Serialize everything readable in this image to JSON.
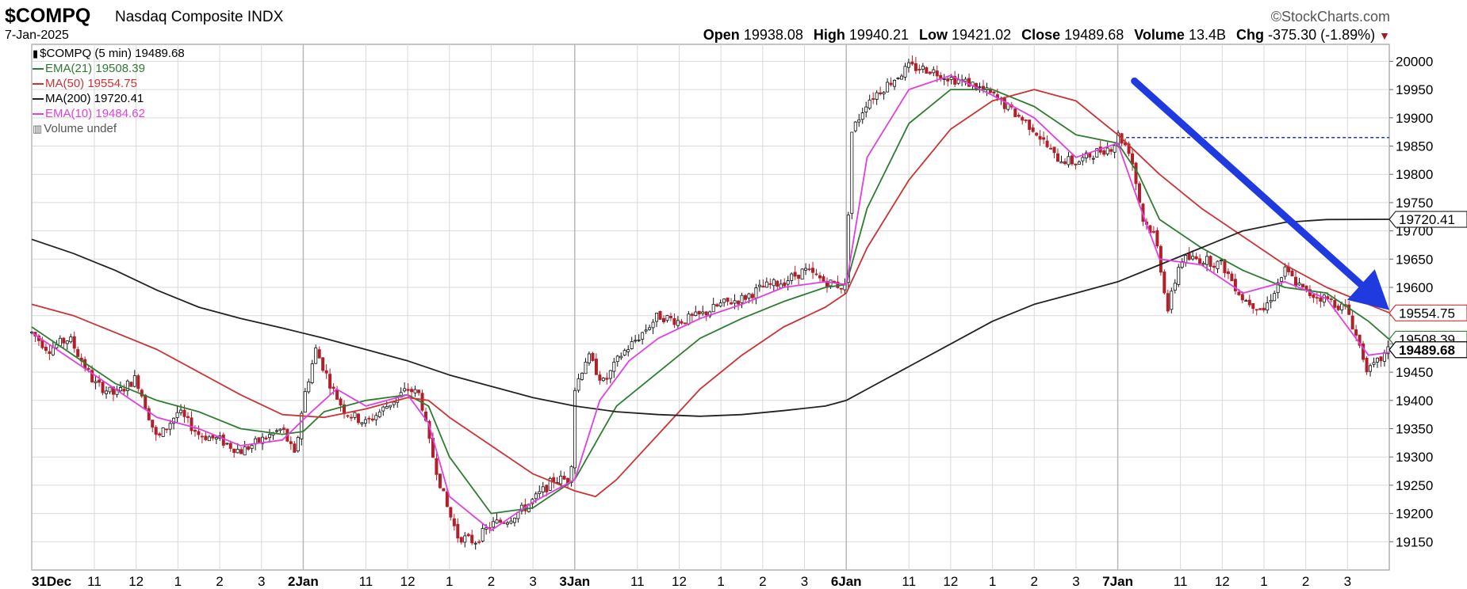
{
  "header": {
    "symbol": "$COMPQ",
    "name": "Nasdaq Composite INDX",
    "date": "7-Jan-2025",
    "watermark": "©StockCharts.com",
    "open_label": "Open",
    "open": "19938.08",
    "high_label": "High",
    "high": "19940.21",
    "low_label": "Low",
    "low": "19421.02",
    "close_label": "Close",
    "close": "19489.68",
    "volume_label": "Volume",
    "volume": "13.4B",
    "chg_label": "Chg",
    "chg": "-375.30 (-1.89%)",
    "chg_marker": "▼"
  },
  "legend": {
    "price": "$COMPQ (5 min) 19489.68",
    "ema21": "EMA(21) 19508.39",
    "ma50": "MA(50) 19554.75",
    "ma200": "MA(200) 19720.41",
    "ema10": "EMA(10) 19484.62",
    "volume": "Volume undef"
  },
  "colors": {
    "candle_up": "#111111",
    "candle_down": "#b0202a",
    "ema21": "#2e7d32",
    "ma50": "#cc3333",
    "ma200": "#222222",
    "ema10": "#e040e0",
    "arrow": "#1f3be0",
    "ref_line": "#2233cc",
    "grid": "#d9d9d9"
  },
  "chart_data": {
    "type": "line",
    "interval": "5 min",
    "ylim": [
      19100,
      20030
    ],
    "y_ticks": [
      19150,
      19200,
      19250,
      19300,
      19350,
      19400,
      19450,
      19500,
      19550,
      19600,
      19650,
      19700,
      19750,
      19800,
      19850,
      19900,
      19950,
      20000
    ],
    "sessions": [
      "31Dec",
      "2Jan",
      "3Jan",
      "6Jan",
      "7Jan"
    ],
    "x_ticks": [
      {
        "t": 0.0,
        "label": "31Dec",
        "bold": true,
        "major": true
      },
      {
        "t": 1.5,
        "label": "11"
      },
      {
        "t": 2.5,
        "label": "12"
      },
      {
        "t": 3.5,
        "label": "1"
      },
      {
        "t": 4.5,
        "label": "2"
      },
      {
        "t": 5.5,
        "label": "3"
      },
      {
        "t": 6.5,
        "label": "2Jan",
        "bold": true,
        "major": true
      },
      {
        "t": 8.0,
        "label": "11"
      },
      {
        "t": 9.0,
        "label": "12"
      },
      {
        "t": 10.0,
        "label": "1"
      },
      {
        "t": 11.0,
        "label": "2"
      },
      {
        "t": 12.0,
        "label": "3"
      },
      {
        "t": 13.0,
        "label": "3Jan",
        "bold": true,
        "major": true
      },
      {
        "t": 14.5,
        "label": "11"
      },
      {
        "t": 15.5,
        "label": "12"
      },
      {
        "t": 16.5,
        "label": "1"
      },
      {
        "t": 17.5,
        "label": "2"
      },
      {
        "t": 18.5,
        "label": "3"
      },
      {
        "t": 19.5,
        "label": "6Jan",
        "bold": true,
        "major": true
      },
      {
        "t": 21.0,
        "label": "11"
      },
      {
        "t": 22.0,
        "label": "12"
      },
      {
        "t": 23.0,
        "label": "1"
      },
      {
        "t": 24.0,
        "label": "2"
      },
      {
        "t": 25.0,
        "label": "3"
      },
      {
        "t": 26.0,
        "label": "7Jan",
        "bold": true,
        "major": true
      },
      {
        "t": 27.5,
        "label": "11"
      },
      {
        "t": 28.5,
        "label": "12"
      },
      {
        "t": 29.5,
        "label": "1"
      },
      {
        "t": 30.5,
        "label": "2"
      },
      {
        "t": 31.5,
        "label": "3"
      }
    ],
    "x_end": 32.5,
    "price_path": [
      [
        0.0,
        19520
      ],
      [
        0.4,
        19490
      ],
      [
        0.9,
        19510
      ],
      [
        1.5,
        19430
      ],
      [
        2.0,
        19410
      ],
      [
        2.5,
        19440
      ],
      [
        3.0,
        19330
      ],
      [
        3.5,
        19380
      ],
      [
        4.0,
        19340
      ],
      [
        4.5,
        19330
      ],
      [
        5.0,
        19310
      ],
      [
        5.5,
        19330
      ],
      [
        6.0,
        19350
      ],
      [
        6.3,
        19300
      ],
      [
        6.5,
        19400
      ],
      [
        6.8,
        19490
      ],
      [
        7.2,
        19420
      ],
      [
        7.5,
        19380
      ],
      [
        8.0,
        19360
      ],
      [
        8.5,
        19390
      ],
      [
        9.0,
        19420
      ],
      [
        9.3,
        19410
      ],
      [
        9.5,
        19330
      ],
      [
        9.9,
        19220
      ],
      [
        10.2,
        19160
      ],
      [
        10.6,
        19150
      ],
      [
        11.0,
        19180
      ],
      [
        11.4,
        19190
      ],
      [
        11.8,
        19210
      ],
      [
        12.1,
        19230
      ],
      [
        12.5,
        19260
      ],
      [
        12.9,
        19260
      ],
      [
        13.0,
        19420
      ],
      [
        13.3,
        19480
      ],
      [
        13.7,
        19430
      ],
      [
        14.1,
        19480
      ],
      [
        14.5,
        19510
      ],
      [
        15.0,
        19550
      ],
      [
        15.5,
        19540
      ],
      [
        16.0,
        19550
      ],
      [
        16.5,
        19570
      ],
      [
        17.0,
        19580
      ],
      [
        17.5,
        19600
      ],
      [
        18.0,
        19610
      ],
      [
        18.5,
        19630
      ],
      [
        19.0,
        19610
      ],
      [
        19.5,
        19600
      ],
      [
        19.6,
        19870
      ],
      [
        20.0,
        19930
      ],
      [
        20.5,
        19960
      ],
      [
        21.0,
        19990
      ],
      [
        21.5,
        19985
      ],
      [
        22.0,
        19970
      ],
      [
        22.5,
        19960
      ],
      [
        23.0,
        19940
      ],
      [
        23.5,
        19910
      ],
      [
        24.0,
        19880
      ],
      [
        24.5,
        19830
      ],
      [
        25.0,
        19820
      ],
      [
        25.5,
        19840
      ],
      [
        25.9,
        19850
      ],
      [
        26.0,
        19870
      ],
      [
        26.3,
        19840
      ],
      [
        26.6,
        19720
      ],
      [
        26.9,
        19690
      ],
      [
        27.2,
        19560
      ],
      [
        27.5,
        19650
      ],
      [
        28.0,
        19650
      ],
      [
        28.5,
        19640
      ],
      [
        29.0,
        19580
      ],
      [
        29.5,
        19560
      ],
      [
        30.0,
        19630
      ],
      [
        30.5,
        19590
      ],
      [
        31.0,
        19580
      ],
      [
        31.5,
        19560
      ],
      [
        32.0,
        19450
      ],
      [
        32.5,
        19489.68
      ]
    ],
    "series": [
      {
        "name": "EMA(21)",
        "key": "ema21",
        "points": [
          [
            0.0,
            19530
          ],
          [
            1.0,
            19480
          ],
          [
            2.0,
            19430
          ],
          [
            3.0,
            19400
          ],
          [
            4.0,
            19380
          ],
          [
            5.0,
            19350
          ],
          [
            6.0,
            19340
          ],
          [
            6.5,
            19345
          ],
          [
            7.0,
            19380
          ],
          [
            8.0,
            19400
          ],
          [
            9.0,
            19410
          ],
          [
            9.5,
            19390
          ],
          [
            10.0,
            19300
          ],
          [
            11.0,
            19200
          ],
          [
            12.0,
            19210
          ],
          [
            13.0,
            19260
          ],
          [
            14.0,
            19390
          ],
          [
            15.0,
            19450
          ],
          [
            16.0,
            19510
          ],
          [
            17.0,
            19545
          ],
          [
            18.0,
            19575
          ],
          [
            19.0,
            19600
          ],
          [
            19.5,
            19605
          ],
          [
            20.0,
            19740
          ],
          [
            21.0,
            19890
          ],
          [
            22.0,
            19950
          ],
          [
            23.0,
            19950
          ],
          [
            24.0,
            19920
          ],
          [
            25.0,
            19870
          ],
          [
            26.0,
            19855
          ],
          [
            26.5,
            19800
          ],
          [
            27.0,
            19720
          ],
          [
            28.0,
            19670
          ],
          [
            29.0,
            19630
          ],
          [
            30.0,
            19600
          ],
          [
            31.0,
            19590
          ],
          [
            32.0,
            19540
          ],
          [
            32.5,
            19508
          ]
        ]
      },
      {
        "name": "MA(50)",
        "key": "ma50",
        "points": [
          [
            0.0,
            19570
          ],
          [
            1.0,
            19550
          ],
          [
            2.0,
            19520
          ],
          [
            3.0,
            19490
          ],
          [
            4.0,
            19450
          ],
          [
            5.0,
            19410
          ],
          [
            6.0,
            19375
          ],
          [
            7.0,
            19370
          ],
          [
            8.0,
            19385
          ],
          [
            9.0,
            19405
          ],
          [
            9.5,
            19400
          ],
          [
            10.0,
            19370
          ],
          [
            11.0,
            19320
          ],
          [
            12.0,
            19270
          ],
          [
            13.0,
            19240
          ],
          [
            13.5,
            19230
          ],
          [
            14.0,
            19260
          ],
          [
            15.0,
            19340
          ],
          [
            16.0,
            19420
          ],
          [
            17.0,
            19480
          ],
          [
            18.0,
            19530
          ],
          [
            19.0,
            19565
          ],
          [
            19.5,
            19590
          ],
          [
            20.0,
            19670
          ],
          [
            21.0,
            19790
          ],
          [
            22.0,
            19880
          ],
          [
            23.0,
            19930
          ],
          [
            24.0,
            19950
          ],
          [
            25.0,
            19930
          ],
          [
            26.0,
            19870
          ],
          [
            27.0,
            19800
          ],
          [
            28.0,
            19740
          ],
          [
            29.0,
            19690
          ],
          [
            30.0,
            19640
          ],
          [
            31.0,
            19600
          ],
          [
            32.0,
            19570
          ],
          [
            32.5,
            19555
          ]
        ]
      },
      {
        "name": "MA(200)",
        "key": "ma200",
        "points": [
          [
            0.0,
            19685
          ],
          [
            1.0,
            19660
          ],
          [
            2.0,
            19630
          ],
          [
            3.0,
            19595
          ],
          [
            4.0,
            19565
          ],
          [
            5.0,
            19545
          ],
          [
            6.0,
            19528
          ],
          [
            7.0,
            19510
          ],
          [
            8.0,
            19490
          ],
          [
            9.0,
            19470
          ],
          [
            10.0,
            19445
          ],
          [
            11.0,
            19425
          ],
          [
            12.0,
            19405
          ],
          [
            13.0,
            19390
          ],
          [
            14.0,
            19380
          ],
          [
            15.0,
            19375
          ],
          [
            16.0,
            19372
          ],
          [
            17.0,
            19375
          ],
          [
            18.0,
            19382
          ],
          [
            19.0,
            19390
          ],
          [
            19.5,
            19400
          ],
          [
            20.0,
            19420
          ],
          [
            21.0,
            19460
          ],
          [
            22.0,
            19500
          ],
          [
            23.0,
            19540
          ],
          [
            24.0,
            19570
          ],
          [
            25.0,
            19590
          ],
          [
            26.0,
            19610
          ],
          [
            27.0,
            19640
          ],
          [
            28.0,
            19670
          ],
          [
            29.0,
            19700
          ],
          [
            30.0,
            19715
          ],
          [
            31.0,
            19720
          ],
          [
            32.5,
            19720.41
          ]
        ]
      },
      {
        "name": "EMA(10)",
        "key": "ema10",
        "points": [
          [
            0.0,
            19520
          ],
          [
            1.0,
            19470
          ],
          [
            2.0,
            19420
          ],
          [
            3.0,
            19370
          ],
          [
            4.0,
            19350
          ],
          [
            5.0,
            19320
          ],
          [
            6.0,
            19330
          ],
          [
            6.7,
            19380
          ],
          [
            7.3,
            19420
          ],
          [
            8.0,
            19390
          ],
          [
            9.0,
            19410
          ],
          [
            9.5,
            19360
          ],
          [
            10.0,
            19230
          ],
          [
            11.0,
            19170
          ],
          [
            12.0,
            19220
          ],
          [
            13.0,
            19260
          ],
          [
            13.6,
            19400
          ],
          [
            14.3,
            19470
          ],
          [
            15.0,
            19510
          ],
          [
            16.0,
            19545
          ],
          [
            17.0,
            19570
          ],
          [
            18.0,
            19600
          ],
          [
            19.0,
            19610
          ],
          [
            19.5,
            19605
          ],
          [
            20.0,
            19830
          ],
          [
            21.0,
            19950
          ],
          [
            22.0,
            19975
          ],
          [
            23.0,
            19940
          ],
          [
            24.0,
            19900
          ],
          [
            25.0,
            19830
          ],
          [
            26.0,
            19855
          ],
          [
            26.5,
            19750
          ],
          [
            27.0,
            19650
          ],
          [
            28.0,
            19640
          ],
          [
            29.0,
            19590
          ],
          [
            30.0,
            19610
          ],
          [
            31.0,
            19580
          ],
          [
            32.0,
            19480
          ],
          [
            32.5,
            19485
          ]
        ]
      }
    ],
    "reference_line": {
      "value": 19865,
      "t_start": 26.2
    },
    "trend_arrow": {
      "from": [
        26.4,
        19965
      ],
      "to": [
        32.5,
        19560
      ]
    },
    "axis_tags": [
      {
        "label": "19720.41",
        "value": 19720.41,
        "key": "ma200"
      },
      {
        "label": "19554.75",
        "value": 19554.75,
        "key": "ma50"
      },
      {
        "label": "19508.39",
        "value": 19508.39,
        "key": "ema21"
      },
      {
        "label": "19489.68",
        "value": 19489.68,
        "key": "price"
      }
    ]
  }
}
